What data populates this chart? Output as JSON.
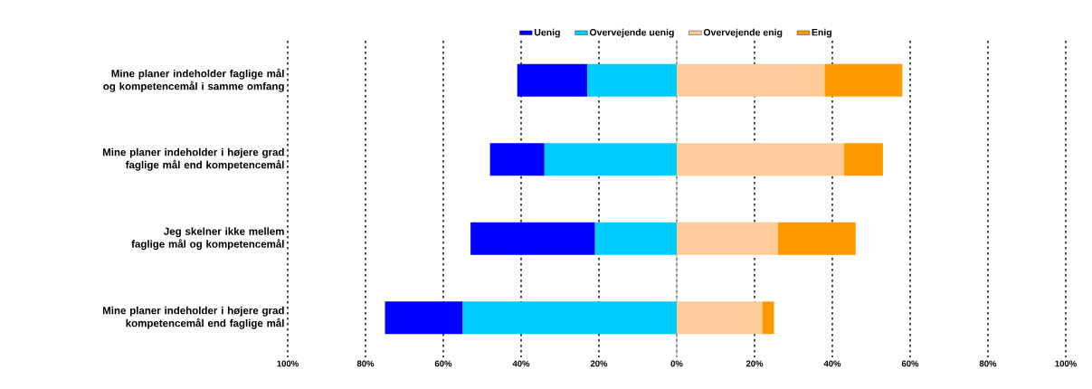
{
  "chart_data": {
    "type": "bar",
    "orientation": "horizontal",
    "stacked": true,
    "grid": "x",
    "legend": "top",
    "categories": [
      "Mine planer indeholder faglige mål og kompetencemål i samme omfang",
      "Mine planer indeholder i højere grad faglige mål end kompetencemål",
      "Jeg skelner ikke mellem faglige mål og kompetencemål",
      "Mine planer indeholder i højere grad kompetencemål end faglige mål"
    ],
    "series": [
      {
        "name": "Uenig",
        "color": "#0000ff",
        "values": [
          -18,
          -14,
          -32,
          -20
        ]
      },
      {
        "name": "Overvejende uenig",
        "color": "#00ccff",
        "values": [
          -23,
          -34,
          -21,
          -55
        ]
      },
      {
        "name": "Overvejende enig",
        "color": "#ffcc99",
        "values": [
          38,
          43,
          26,
          22
        ]
      },
      {
        "name": "Enig",
        "color": "#ff9900",
        "values": [
          20,
          10,
          20,
          3
        ]
      }
    ],
    "xlim": [
      -100,
      100
    ],
    "xticks": [
      {
        "value": -100,
        "label": "100%"
      },
      {
        "value": -80,
        "label": "80%"
      },
      {
        "value": -60,
        "label": "60%"
      },
      {
        "value": -40,
        "label": "40%"
      },
      {
        "value": -20,
        "label": "20%"
      },
      {
        "value": 0,
        "label": "0%"
      },
      {
        "value": 20,
        "label": "20%"
      },
      {
        "value": 40,
        "label": "40%"
      },
      {
        "value": 60,
        "label": "60%"
      },
      {
        "value": 80,
        "label": "80%"
      },
      {
        "value": 100,
        "label": "100%"
      }
    ]
  }
}
